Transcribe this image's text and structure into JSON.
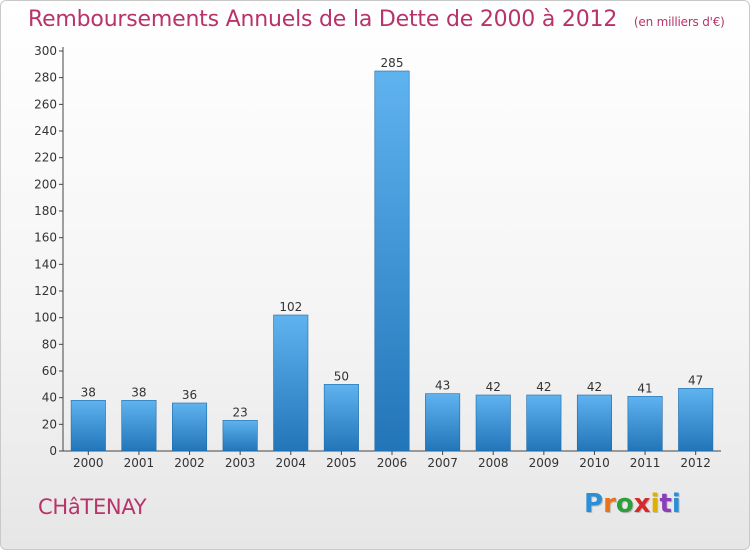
{
  "chart_data": {
    "type": "bar",
    "title": "Remboursements Annuels de la Dette de 2000 à 2012",
    "subtitle": "(en milliers d'€)",
    "categories": [
      "2000",
      "2001",
      "2002",
      "2003",
      "2004",
      "2005",
      "2006",
      "2007",
      "2008",
      "2009",
      "2010",
      "2011",
      "2012"
    ],
    "values": [
      38,
      38,
      36,
      23,
      102,
      50,
      285,
      43,
      42,
      42,
      42,
      41,
      47
    ],
    "ylim": [
      0,
      300
    ],
    "yticks": [
      0,
      20,
      40,
      60,
      80,
      100,
      120,
      140,
      160,
      180,
      200,
      220,
      240,
      260,
      280,
      300
    ],
    "xlabel": "",
    "ylabel": "",
    "grid": false,
    "data_labels": true,
    "bar_color": "#3d93d6"
  },
  "footer": {
    "city": "CHâTENAY",
    "logo_text": "Proxiti",
    "logo_colors": [
      "#2a8fd6",
      "#e8731a",
      "#2e9e3a",
      "#d62a2a",
      "#e0b000",
      "#8a3fb8",
      "#2a8fd6"
    ]
  }
}
